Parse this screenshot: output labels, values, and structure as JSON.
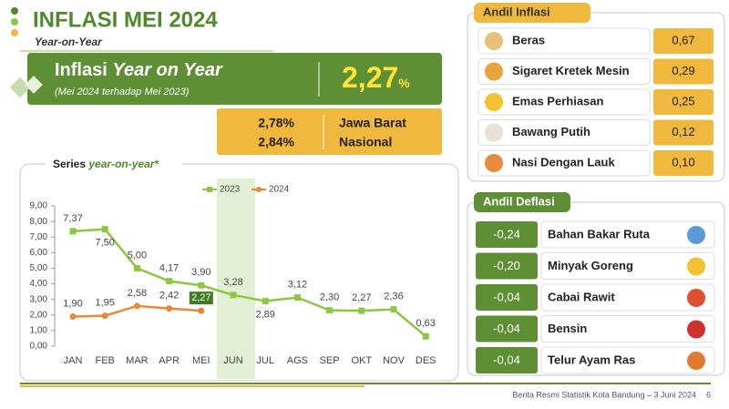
{
  "header": {
    "title": "INFLASI MEI 2024",
    "subtitle": "Year-on-Year"
  },
  "yoy": {
    "label": "Inflasi",
    "label_emphasis": "Year on Year",
    "note": "(Mei 2024 terhadap Mei 2023)",
    "value": "2,27",
    "unit": "%"
  },
  "regional": [
    {
      "value": "2,78%",
      "name": "Jawa Barat"
    },
    {
      "value": "2,84%",
      "name": "Nasional"
    }
  ],
  "chart_data": {
    "type": "line",
    "title": "Series",
    "title_emphasis": "year-on-year*",
    "categories": [
      "JAN",
      "FEB",
      "MAR",
      "APR",
      "MEI",
      "JUN",
      "JUL",
      "AGS",
      "SEP",
      "OKT",
      "NOV",
      "DES"
    ],
    "series": [
      {
        "name": "2023",
        "color": "#8dc63f",
        "values": [
          7.37,
          7.5,
          5.0,
          4.17,
          3.9,
          3.28,
          2.89,
          3.12,
          2.3,
          2.27,
          2.36,
          0.63
        ],
        "value_labels": [
          "7,37",
          "7,50",
          "5,00",
          "4,17",
          "3,90",
          "3,28",
          "2,89",
          "3,12",
          "2,30",
          "2,27",
          "2,36",
          "0,63"
        ]
      },
      {
        "name": "2024",
        "color": "#e8893a",
        "values": [
          1.9,
          1.95,
          2.58,
          2.42,
          2.27,
          null,
          null,
          null,
          null,
          null,
          null,
          null
        ],
        "value_labels": [
          "1,90",
          "1,95",
          "2,58",
          "2,42",
          "2,27",
          null,
          null,
          null,
          null,
          null,
          null,
          null
        ]
      }
    ],
    "ylim": [
      0,
      9
    ],
    "yticks": [
      {
        "value": 0,
        "label": "0,00"
      },
      {
        "value": 1,
        "label": "1,00"
      },
      {
        "value": 2,
        "label": "2,00"
      },
      {
        "value": 3,
        "label": "3,00"
      },
      {
        "value": 4,
        "label": "4,00"
      },
      {
        "value": 5,
        "label": "5,00"
      },
      {
        "value": 6,
        "label": "6,00"
      },
      {
        "value": 7,
        "label": "7,00"
      },
      {
        "value": 8,
        "label": "8,00"
      },
      {
        "value": 9,
        "label": "9,00"
      }
    ],
    "highlight_category": "JUN",
    "legend": "top"
  },
  "andil_inflasi": {
    "title": "Andil Inflasi",
    "items": [
      {
        "name": "Beras",
        "value": "0,67"
      },
      {
        "name": "Sigaret Kretek Mesin",
        "value": "0,29"
      },
      {
        "name": "Emas Perhiasan",
        "value": "0,25"
      },
      {
        "name": "Bawang Putih",
        "value": "0,12"
      },
      {
        "name": "Nasi Dengan Lauk",
        "value": "0,10"
      }
    ]
  },
  "andil_deflasi": {
    "title": "Andil Deflasi",
    "items": [
      {
        "name": "Bahan Bakar Ruta",
        "value": "-0,24"
      },
      {
        "name": "Minyak Goreng",
        "value": "-0,20"
      },
      {
        "name": "Cabai Rawit",
        "value": "-0,04"
      },
      {
        "name": "Bensin",
        "value": "-0,04"
      },
      {
        "name": "Telur Ayam Ras",
        "value": "-0,04"
      }
    ]
  },
  "footer": {
    "source": "Berita Resmi Statistik Kota Bandung –  3 Juni 2024",
    "page": "6"
  }
}
